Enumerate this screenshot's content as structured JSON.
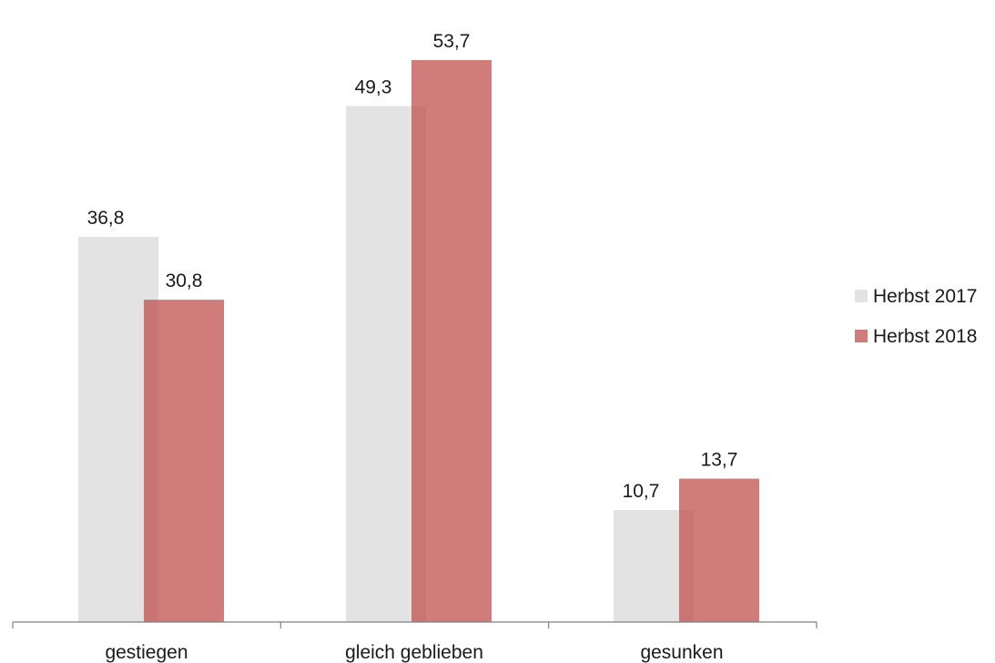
{
  "chart_data": {
    "type": "bar",
    "title": "",
    "xlabel": "",
    "ylabel": "",
    "categories": [
      "gestiegen",
      "gleich geblieben",
      "gesunken"
    ],
    "series": [
      {
        "name": "Herbst 2017",
        "values": [
          36.8,
          49.3,
          10.7
        ],
        "labels": [
          "36,8",
          "49,3",
          "10,7"
        ],
        "color": "#d9d9d9"
      },
      {
        "name": "Herbst 2018",
        "values": [
          30.8,
          53.7,
          13.7
        ],
        "labels": [
          "30,8",
          "53,7",
          "13,7"
        ],
        "color": "#c0504d"
      }
    ],
    "series_opacity": 0.75,
    "ylim": [
      0,
      60
    ],
    "y_axis_visible": false,
    "grid": false,
    "legend_position": "right"
  }
}
